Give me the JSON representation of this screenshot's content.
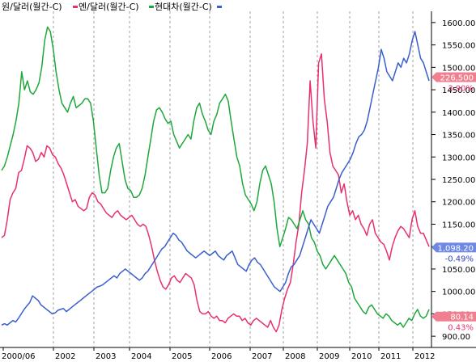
{
  "chart_data": {
    "type": "line",
    "legend": [
      {
        "label": "원/달러(월간-C)",
        "color": "#e8306e"
      },
      {
        "label": "엔/달러(월간-C)",
        "color": "#1ea83c"
      },
      {
        "label": "현대차(월간-C)",
        "color": "#3a5fcd"
      }
    ],
    "x_ticks": [
      "2000/06",
      "2002",
      "2003",
      "2004",
      "2005",
      "2006",
      "2007",
      "2008",
      "2009",
      "2010",
      "2011",
      "2012"
    ],
    "y_ticks": [
      "900.00",
      "950.00",
      "1000.00",
      "1050.00",
      "1100.00",
      "1150.00",
      "1200.00",
      "1250.00",
      "1300.00",
      "1350.00",
      "1400.00",
      "1450.00",
      "1500.00",
      "1550.00",
      "1600.00"
    ],
    "ylim": [
      875,
      1625
    ],
    "grid": {
      "vertical": true,
      "horizontal": false
    },
    "value_badges": [
      {
        "value": "226,500",
        "change": "3.90%",
        "color": "#e8306e",
        "bg": "#f07f8f",
        "change_color": "#e8306e",
        "y": 1478
      },
      {
        "value": "1,098.20",
        "change": "-0.49%",
        "color": "#3a5fcd",
        "bg": "#6f88e3",
        "change_color": "#2f3fc0",
        "y": 1098
      },
      {
        "value": "80.14",
        "change": "0.43%",
        "color": "#1ea83c",
        "bg": "#f07f8f",
        "change_color": "#e8306e",
        "y": 944
      }
    ],
    "series": [
      {
        "name": "원/달러(월간-C)",
        "color": "#e8306e",
        "y": [
          1120,
          1125,
          1160,
          1205,
          1220,
          1230,
          1265,
          1270,
          1295,
          1325,
          1320,
          1310,
          1290,
          1295,
          1310,
          1300,
          1325,
          1320,
          1305,
          1300,
          1285,
          1275,
          1260,
          1240,
          1220,
          1200,
          1205,
          1190,
          1185,
          1180,
          1185,
          1210,
          1220,
          1215,
          1200,
          1195,
          1185,
          1175,
          1170,
          1165,
          1175,
          1180,
          1170,
          1165,
          1160,
          1165,
          1170,
          1160,
          1150,
          1145,
          1150,
          1145,
          1125,
          1100,
          1070,
          1045,
          1025,
          1010,
          1005,
          1015,
          1030,
          1035,
          1025,
          1020,
          1030,
          1040,
          1035,
          1030,
          1015,
          980,
          955,
          950,
          950,
          955,
          945,
          940,
          945,
          935,
          935,
          930,
          940,
          945,
          950,
          945,
          945,
          935,
          940,
          930,
          925,
          935,
          940,
          935,
          930,
          925,
          920,
          935,
          920,
          910,
          925,
          960,
          985,
          1005,
          1020,
          1060,
          1110,
          1150,
          1220,
          1270,
          1330,
          1470,
          1380,
          1320,
          1510,
          1530,
          1430,
          1380,
          1310,
          1280,
          1270,
          1260,
          1220,
          1240,
          1200,
          1170,
          1180,
          1160,
          1170,
          1150,
          1140,
          1125,
          1150,
          1160,
          1130,
          1120,
          1110,
          1105,
          1090,
          1070,
          1100,
          1120,
          1135,
          1145,
          1140,
          1130,
          1120,
          1160,
          1180,
          1145,
          1130,
          1130,
          1115,
          1100
        ]
      },
      {
        "name": "엔/달러(월간-C)",
        "color": "#1ea83c",
        "y": [
          1270,
          1280,
          1300,
          1325,
          1350,
          1380,
          1420,
          1490,
          1450,
          1470,
          1445,
          1440,
          1450,
          1465,
          1500,
          1560,
          1590,
          1580,
          1540,
          1490,
          1450,
          1420,
          1410,
          1400,
          1420,
          1435,
          1410,
          1415,
          1420,
          1430,
          1430,
          1420,
          1380,
          1320,
          1260,
          1220,
          1220,
          1230,
          1270,
          1300,
          1320,
          1330,
          1290,
          1250,
          1230,
          1225,
          1210,
          1210,
          1215,
          1230,
          1260,
          1300,
          1340,
          1380,
          1405,
          1410,
          1400,
          1385,
          1375,
          1380,
          1350,
          1335,
          1320,
          1330,
          1340,
          1350,
          1340,
          1380,
          1410,
          1420,
          1395,
          1380,
          1360,
          1350,
          1380,
          1395,
          1420,
          1430,
          1440,
          1425,
          1380,
          1340,
          1300,
          1280,
          1240,
          1215,
          1205,
          1195,
          1180,
          1200,
          1240,
          1270,
          1280,
          1260,
          1240,
          1200,
          1140,
          1100,
          1120,
          1140,
          1165,
          1160,
          1150,
          1140,
          1160,
          1180,
          1160,
          1150,
          1120,
          1110,
          1090,
          1080,
          1060,
          1050,
          1060,
          1070,
          1080,
          1070,
          1060,
          1050,
          1040,
          1020,
          1010,
          985,
          975,
          965,
          955,
          950,
          965,
          970,
          960,
          950,
          945,
          940,
          950,
          945,
          935,
          930,
          925,
          930,
          920,
          930,
          940,
          935,
          950,
          960,
          945,
          940,
          945,
          960
        ]
      },
      {
        "name": "현대차(월간-C)",
        "color": "#3a5fcd",
        "y": [
          925,
          928,
          925,
          930,
          935,
          932,
          940,
          950,
          960,
          968,
          975,
          990,
          985,
          980,
          970,
          965,
          960,
          955,
          950,
          952,
          958,
          960,
          962,
          955,
          960,
          965,
          970,
          975,
          980,
          985,
          990,
          995,
          1000,
          1005,
          1010,
          1012,
          1015,
          1020,
          1025,
          1030,
          1035,
          1030,
          1040,
          1045,
          1050,
          1045,
          1040,
          1035,
          1030,
          1025,
          1030,
          1040,
          1045,
          1055,
          1065,
          1075,
          1085,
          1095,
          1100,
          1110,
          1120,
          1130,
          1125,
          1115,
          1110,
          1100,
          1090,
          1085,
          1080,
          1075,
          1080,
          1085,
          1090,
          1085,
          1080,
          1085,
          1090,
          1080,
          1075,
          1070,
          1080,
          1085,
          1090,
          1075,
          1060,
          1055,
          1050,
          1045,
          1060,
          1070,
          1075,
          1065,
          1060,
          1050,
          1040,
          1030,
          1020,
          1010,
          1005,
          1000,
          1010,
          1020,
          1040,
          1055,
          1060,
          1070,
          1080,
          1100,
          1120,
          1140,
          1160,
          1150,
          1140,
          1130,
          1150,
          1170,
          1190,
          1200,
          1210,
          1230,
          1250,
          1265,
          1275,
          1285,
          1295,
          1310,
          1330,
          1345,
          1350,
          1360,
          1380,
          1410,
          1440,
          1470,
          1500,
          1540,
          1520,
          1490,
          1480,
          1470,
          1490,
          1510,
          1500,
          1520,
          1510,
          1530,
          1560,
          1580,
          1550,
          1520,
          1510,
          1490,
          1470
        ]
      }
    ]
  }
}
